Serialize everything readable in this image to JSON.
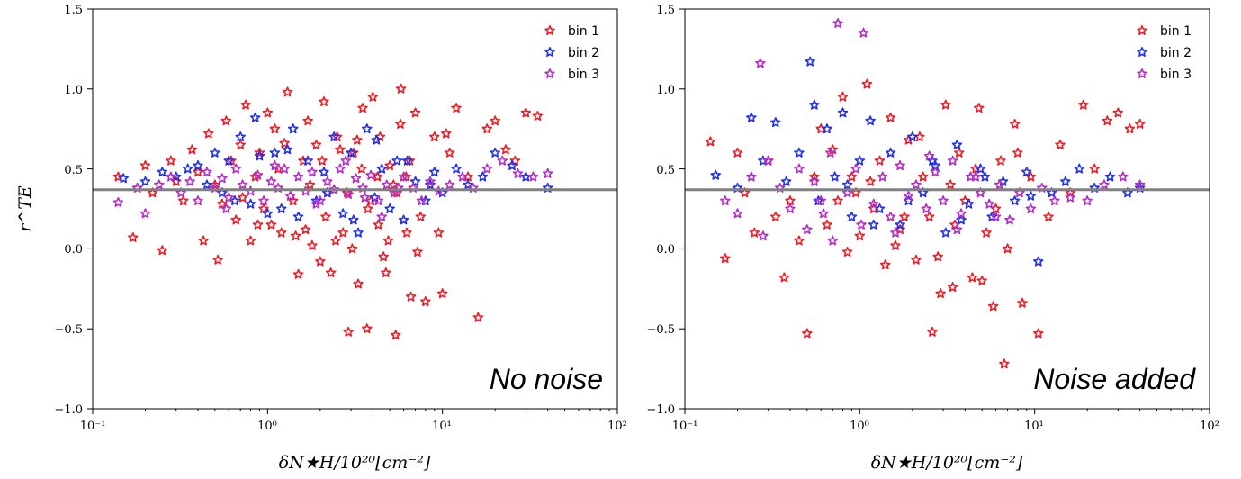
{
  "colors": {
    "bin1": "#ee1c25",
    "bin2": "#1f2fee",
    "bin3": "#b42dc8",
    "reference_line": "#808080"
  },
  "shared": {
    "xlabel": "δN★H/10²⁰[cm⁻²]",
    "ylabel": "r^TE",
    "x_tick_labels": [
      "10⁻¹",
      "10⁰",
      "10¹",
      "10²"
    ],
    "y_tick_labels": [
      "−1.0",
      "−0.5",
      "0.0",
      "0.5",
      "1.0",
      "1.5"
    ]
  },
  "chart_data": [
    {
      "type": "scatter",
      "panel_label": "No noise",
      "xscale": "log",
      "xlim": [
        0.1,
        100
      ],
      "ylim": [
        -1.0,
        1.5
      ],
      "reference_line_y": 0.37,
      "legend": {
        "placement": "top-right",
        "entries": [
          "bin 1",
          "bin 2",
          "bin 3"
        ]
      },
      "series": [
        {
          "name": "bin 1",
          "color_key": "bin1",
          "x": [
            0.14,
            0.17,
            0.18,
            0.2,
            0.22,
            0.25,
            0.28,
            0.3,
            0.33,
            0.37,
            0.4,
            0.43,
            0.46,
            0.5,
            0.52,
            0.55,
            0.58,
            0.62,
            0.66,
            0.7,
            0.75,
            0.8,
            0.85,
            0.9,
            0.95,
            1.0,
            1.05,
            1.1,
            1.2,
            1.3,
            1.4,
            1.5,
            1.6,
            1.7,
            1.8,
            1.9,
            2.0,
            2.1,
            2.2,
            2.3,
            2.5,
            2.7,
            2.9,
            3.1,
            3.3,
            3.5,
            3.7,
            4.0,
            4.3,
            4.6,
            5.0,
            5.4,
            5.8,
            6.2,
            6.6,
            7.0,
            7.5,
            8.0,
            9.0,
            10.0,
            11.0,
            12.0,
            14.0,
            16.0,
            18.0,
            20.0,
            23.0,
            26.0,
            30.0,
            35.0,
            1.25,
            1.65,
            2.05,
            2.45,
            2.85,
            3.25,
            3.75,
            4.25,
            4.75,
            5.25,
            5.75,
            6.25,
            0.72,
            0.88,
            1.15,
            1.45,
            1.75,
            2.15,
            2.6,
            3.05,
            3.45,
            3.9,
            4.4,
            4.9,
            5.5,
            6.5,
            7.2,
            8.5,
            9.5,
            10.5
          ],
          "y": [
            0.45,
            0.07,
            0.38,
            0.52,
            0.35,
            -0.01,
            0.55,
            0.42,
            0.3,
            0.62,
            0.48,
            0.05,
            0.72,
            0.4,
            -0.07,
            0.28,
            0.8,
            0.55,
            0.18,
            0.65,
            0.9,
            0.05,
            0.45,
            0.6,
            0.25,
            0.85,
            0.15,
            0.75,
            0.1,
            0.98,
            0.3,
            -0.16,
            0.55,
            0.8,
            0.02,
            0.65,
            -0.08,
            0.92,
            0.35,
            -0.15,
            0.7,
            0.1,
            -0.52,
            0.6,
            -0.22,
            0.88,
            -0.5,
            0.95,
            0.15,
            -0.05,
            0.52,
            -0.54,
            1.0,
            0.45,
            -0.3,
            0.85,
            0.2,
            -0.33,
            0.7,
            -0.28,
            0.6,
            0.88,
            0.45,
            -0.43,
            0.75,
            0.8,
            0.62,
            0.55,
            0.85,
            0.83,
            0.66,
            0.12,
            0.55,
            0.05,
            0.35,
            0.68,
            0.25,
            0.45,
            -0.15,
            0.4,
            0.78,
            0.1,
            0.32,
            0.15,
            0.5,
            0.08,
            0.4,
            0.2,
            0.62,
            0.0,
            0.5,
            0.3,
            0.7,
            0.05,
            0.35,
            0.55,
            -0.02,
            0.4,
            0.1,
            0.72
          ]
        },
        {
          "name": "bin 2",
          "color_key": "bin2",
          "x": [
            0.15,
            0.2,
            0.25,
            0.3,
            0.35,
            0.4,
            0.45,
            0.5,
            0.55,
            0.6,
            0.65,
            0.7,
            0.8,
            0.9,
            1.0,
            1.1,
            1.2,
            1.3,
            1.5,
            1.7,
            1.9,
            2.1,
            2.4,
            2.7,
            3.0,
            3.3,
            3.7,
            4.1,
            4.5,
            5.0,
            5.5,
            6.0,
            7.0,
            8.0,
            9.0,
            10.0,
            12.0,
            14.0,
            17.0,
            20.0,
            25.0,
            30.0,
            40.0,
            0.85,
            1.4,
            2.2,
            3.1,
            4.2,
            6.3,
            8.5
          ],
          "y": [
            0.44,
            0.42,
            0.48,
            0.45,
            0.5,
            0.52,
            0.4,
            0.6,
            0.35,
            0.55,
            0.3,
            0.7,
            0.28,
            0.58,
            0.22,
            0.6,
            0.25,
            0.62,
            0.2,
            0.55,
            0.3,
            0.48,
            0.7,
            0.22,
            0.6,
            0.1,
            0.75,
            0.32,
            0.5,
            0.25,
            0.55,
            0.18,
            0.42,
            0.3,
            0.48,
            0.35,
            0.5,
            0.4,
            0.45,
            0.6,
            0.52,
            0.45,
            0.38,
            0.82,
            0.75,
            0.35,
            0.18,
            0.68,
            0.55,
            0.4
          ]
        },
        {
          "name": "bin 3",
          "color_key": "bin3",
          "x": [
            0.14,
            0.18,
            0.2,
            0.24,
            0.28,
            0.32,
            0.36,
            0.4,
            0.45,
            0.5,
            0.55,
            0.6,
            0.66,
            0.72,
            0.8,
            0.88,
            0.95,
            1.05,
            1.15,
            1.25,
            1.35,
            1.5,
            1.65,
            1.8,
            2.0,
            2.2,
            2.4,
            2.6,
            2.9,
            3.2,
            3.5,
            3.9,
            4.3,
            4.8,
            5.3,
            6.0,
            6.8,
            7.6,
            8.5,
            9.5,
            11.0,
            13.0,
            15.0,
            18.0,
            22.0,
            27.0,
            33.0,
            40.0,
            0.58,
            1.1,
            1.9,
            2.8,
            3.6,
            4.5,
            5.6
          ],
          "y": [
            0.29,
            0.38,
            0.22,
            0.4,
            0.45,
            0.35,
            0.42,
            0.3,
            0.48,
            0.38,
            0.44,
            0.32,
            0.5,
            0.4,
            0.36,
            0.46,
            0.3,
            0.42,
            0.38,
            0.5,
            0.33,
            0.45,
            0.36,
            0.48,
            0.3,
            0.42,
            0.37,
            0.5,
            0.34,
            0.44,
            0.38,
            0.46,
            0.3,
            0.4,
            0.35,
            0.45,
            0.38,
            0.3,
            0.42,
            0.36,
            0.4,
            0.45,
            0.38,
            0.5,
            0.55,
            0.47,
            0.45,
            0.47,
            0.25,
            0.52,
            0.28,
            0.55,
            0.32,
            0.2,
            0.38
          ]
        }
      ]
    },
    {
      "type": "scatter",
      "panel_label": "Noise added",
      "xscale": "log",
      "xlim": [
        0.1,
        100
      ],
      "ylim": [
        -1.0,
        1.5
      ],
      "reference_line_y": 0.37,
      "legend": {
        "placement": "top-right",
        "entries": [
          "bin 1",
          "bin 2",
          "bin 3"
        ]
      },
      "series": [
        {
          "name": "bin 1",
          "color_key": "bin1",
          "x": [
            0.14,
            0.17,
            0.2,
            0.22,
            0.25,
            0.3,
            0.33,
            0.37,
            0.4,
            0.45,
            0.5,
            0.55,
            0.6,
            0.65,
            0.7,
            0.75,
            0.8,
            0.85,
            0.9,
            1.0,
            1.1,
            1.2,
            1.3,
            1.4,
            1.5,
            1.7,
            1.9,
            2.1,
            2.3,
            2.5,
            2.8,
            3.1,
            3.4,
            3.7,
            4.0,
            4.4,
            4.8,
            5.3,
            5.8,
            6.4,
            7.0,
            7.7,
            8.5,
            9.5,
            10.5,
            12.0,
            14.0,
            16.0,
            19.0,
            22.0,
            26.0,
            30.0,
            35.0,
            40.0,
            1.15,
            1.6,
            2.2,
            2.9,
            3.5,
            4.6,
            6.0,
            0.95,
            1.8,
            2.6,
            3.3,
            5.0,
            6.7,
            8.0
          ],
          "y": [
            0.67,
            -0.06,
            0.6,
            0.35,
            0.1,
            0.55,
            0.2,
            -0.18,
            0.3,
            0.05,
            -0.53,
            0.45,
            0.75,
            0.15,
            0.62,
            0.3,
            0.95,
            -0.02,
            0.45,
            0.08,
            1.03,
            0.25,
            0.55,
            -0.1,
            0.82,
            0.12,
            0.68,
            -0.07,
            0.45,
            0.2,
            -0.05,
            0.9,
            -0.24,
            0.6,
            0.3,
            -0.18,
            0.88,
            0.1,
            -0.36,
            0.55,
            0.0,
            0.78,
            -0.34,
            0.45,
            -0.53,
            0.2,
            0.65,
            0.35,
            0.9,
            0.5,
            0.8,
            0.85,
            0.75,
            0.78,
            0.42,
            0.02,
            0.7,
            -0.28,
            0.15,
            0.5,
            0.25,
            0.35,
            0.2,
            -0.52,
            0.4,
            -0.2,
            -0.72,
            0.6
          ]
        },
        {
          "name": "bin 2",
          "color_key": "bin2",
          "x": [
            0.15,
            0.2,
            0.24,
            0.28,
            0.33,
            0.38,
            0.45,
            0.52,
            0.58,
            0.65,
            0.72,
            0.8,
            0.9,
            1.0,
            1.15,
            1.3,
            1.5,
            1.7,
            2.0,
            2.3,
            2.7,
            3.1,
            3.6,
            4.2,
            4.9,
            5.7,
            6.6,
            7.7,
            9.0,
            10.5,
            12.5,
            15.0,
            18.0,
            22.0,
            27.0,
            34.0,
            40.0,
            0.55,
            0.85,
            1.2,
            1.9,
            2.6,
            3.8,
            5.2,
            9.5
          ],
          "y": [
            0.46,
            0.38,
            0.82,
            0.55,
            0.79,
            0.42,
            0.6,
            1.17,
            0.3,
            0.75,
            0.45,
            0.85,
            0.2,
            0.55,
            0.8,
            0.25,
            0.6,
            0.15,
            0.7,
            0.35,
            0.52,
            0.1,
            0.65,
            0.28,
            0.5,
            0.2,
            0.42,
            0.3,
            0.48,
            -0.08,
            0.35,
            0.42,
            0.5,
            0.38,
            0.45,
            0.35,
            0.38,
            0.9,
            0.4,
            0.15,
            0.3,
            0.55,
            0.18,
            0.45,
            0.33
          ]
        },
        {
          "name": "bin 3",
          "color_key": "bin3",
          "x": [
            0.17,
            0.2,
            0.24,
            0.27,
            0.3,
            0.35,
            0.4,
            0.45,
            0.5,
            0.55,
            0.6,
            0.68,
            0.75,
            0.85,
            0.95,
            1.05,
            1.2,
            1.35,
            1.5,
            1.7,
            1.9,
            2.1,
            2.4,
            2.7,
            3.0,
            3.4,
            3.8,
            4.3,
            4.9,
            5.5,
            6.3,
            7.2,
            8.2,
            9.5,
            11.0,
            13.0,
            16.0,
            20.0,
            25.0,
            32.0,
            40.0,
            0.7,
            1.02,
            0.28,
            0.62,
            1.6,
            2.5,
            3.6,
            4.6,
            6.0
          ],
          "y": [
            0.3,
            0.22,
            0.45,
            1.16,
            0.55,
            0.38,
            0.25,
            0.5,
            0.12,
            0.42,
            0.3,
            0.6,
            1.41,
            0.35,
            0.5,
            1.35,
            0.28,
            0.45,
            0.2,
            0.52,
            0.33,
            0.4,
            0.25,
            0.48,
            0.3,
            0.55,
            0.22,
            0.45,
            0.35,
            0.28,
            0.4,
            0.18,
            0.35,
            0.25,
            0.38,
            0.3,
            0.32,
            0.3,
            0.4,
            0.45,
            0.4,
            0.05,
            0.15,
            0.08,
            0.22,
            0.1,
            0.58,
            0.12,
            0.45,
            0.2
          ]
        }
      ]
    }
  ]
}
